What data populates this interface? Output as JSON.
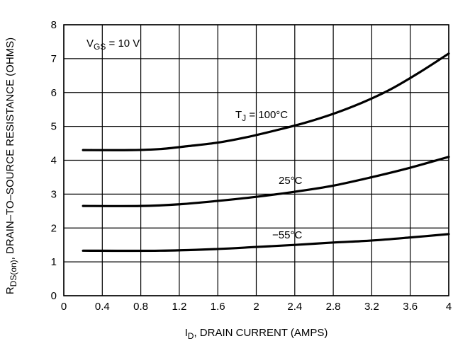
{
  "chart_data": {
    "type": "line",
    "xlabel_main": "I",
    "xlabel_sub": "D",
    "xlabel_rest": ", DRAIN CURRENT (AMPS)",
    "ylabel_main": "R",
    "ylabel_sub": "DS(on)",
    "ylabel_rest": ", DRAIN–TO–SOURCE RESISTANCE (OHMS)",
    "xlim": [
      0,
      4
    ],
    "ylim": [
      0,
      8
    ],
    "x_ticks": [
      "0",
      "0.4",
      "0.8",
      "1.2",
      "1.6",
      "2",
      "2.4",
      "2.8",
      "3.2",
      "3.6",
      "4"
    ],
    "y_ticks": [
      "0",
      "1",
      "2",
      "3",
      "4",
      "5",
      "6",
      "7",
      "8"
    ],
    "grid": true,
    "annotations": {
      "vgs_main": "V",
      "vgs_sub": "GS",
      "vgs_rest": " = 10 V",
      "tj_main": "T",
      "tj_sub": "J",
      "tj_rest": " =  100°C",
      "t25": "25°C",
      "tm55": "−55°C"
    },
    "series": [
      {
        "values": [
          [
            0.2,
            4.3
          ],
          [
            0.7,
            4.3
          ],
          [
            1.0,
            4.33
          ],
          [
            1.3,
            4.42
          ],
          [
            1.6,
            4.52
          ],
          [
            1.9,
            4.68
          ],
          [
            2.2,
            4.88
          ],
          [
            2.5,
            5.1
          ],
          [
            2.8,
            5.37
          ],
          [
            3.1,
            5.7
          ],
          [
            3.4,
            6.1
          ],
          [
            3.7,
            6.6
          ],
          [
            4.0,
            7.15
          ]
        ]
      },
      {
        "values": [
          [
            0.2,
            2.65
          ],
          [
            0.8,
            2.65
          ],
          [
            1.2,
            2.7
          ],
          [
            1.6,
            2.8
          ],
          [
            2.0,
            2.92
          ],
          [
            2.4,
            3.07
          ],
          [
            2.8,
            3.25
          ],
          [
            3.2,
            3.5
          ],
          [
            3.6,
            3.78
          ],
          [
            4.0,
            4.1
          ]
        ]
      },
      {
        "values": [
          [
            0.2,
            1.33
          ],
          [
            1.0,
            1.33
          ],
          [
            1.6,
            1.38
          ],
          [
            2.0,
            1.44
          ],
          [
            2.4,
            1.5
          ],
          [
            2.8,
            1.57
          ],
          [
            3.2,
            1.63
          ],
          [
            3.6,
            1.72
          ],
          [
            4.0,
            1.82
          ]
        ]
      }
    ]
  }
}
